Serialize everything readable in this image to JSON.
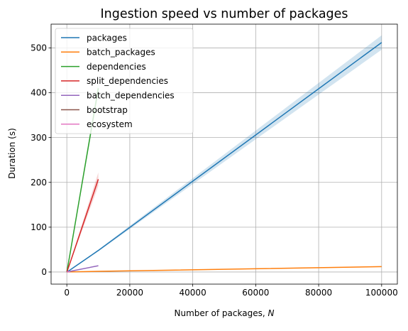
{
  "chart_data": {
    "type": "line",
    "title": "Ingestion speed vs number of packages",
    "xlabel": "Number of packages, ",
    "xlabel_italic": "N",
    "ylabel": "Duration (s)",
    "xlim": [
      -5000,
      105000
    ],
    "ylim": [
      -27,
      553
    ],
    "xticks": [
      0,
      20000,
      40000,
      60000,
      80000,
      100000
    ],
    "xtick_labels": [
      "0",
      "20000",
      "40000",
      "60000",
      "80000",
      "100000"
    ],
    "yticks": [
      0,
      100,
      200,
      300,
      400,
      500
    ],
    "ytick_labels": [
      "0",
      "100",
      "200",
      "300",
      "400",
      "500"
    ],
    "grid": true,
    "legend_position": "top-left",
    "series": [
      {
        "name": "packages",
        "color": "#1f77b4",
        "x": [
          10,
          100,
          1000,
          10000,
          100000
        ],
        "y": [
          0.1,
          0.5,
          4.5,
          48,
          512
        ],
        "band_low": [
          0.1,
          0.5,
          4.3,
          46,
          496
        ],
        "band_high": [
          0.1,
          0.5,
          4.7,
          50,
          528
        ]
      },
      {
        "name": "batch_packages",
        "color": "#ff7f0e",
        "x": [
          10,
          100,
          1000,
          10000,
          100000
        ],
        "y": [
          0.05,
          0.1,
          0.3,
          1.5,
          12
        ],
        "band_low": [
          0.05,
          0.1,
          0.3,
          1.3,
          11
        ],
        "band_high": [
          0.05,
          0.1,
          0.3,
          1.7,
          13
        ]
      },
      {
        "name": "dependencies",
        "color": "#2ca02c",
        "x": [
          10,
          100,
          1000,
          10000
        ],
        "y": [
          0.4,
          4,
          40,
          410
        ],
        "band_low": [
          0.4,
          3.8,
          38,
          398
        ],
        "band_high": [
          0.4,
          4.2,
          42,
          422
        ]
      },
      {
        "name": "split_dependencies",
        "color": "#d62728",
        "x": [
          10,
          100,
          1000,
          10000
        ],
        "y": [
          0.2,
          2,
          20,
          207
        ],
        "band_low": [
          0.2,
          1.9,
          18,
          192
        ],
        "band_high": [
          0.2,
          2.1,
          22,
          222
        ]
      },
      {
        "name": "batch_dependencies",
        "color": "#9467bd",
        "x": [
          10,
          100,
          1000,
          10000
        ],
        "y": [
          0.1,
          0.3,
          1.5,
          14
        ],
        "band_low": [
          0.1,
          0.3,
          1.4,
          13
        ],
        "band_high": [
          0.1,
          0.3,
          1.6,
          15
        ]
      },
      {
        "name": "bootstrap",
        "color": "#8c564b",
        "x": [
          10,
          100,
          1000
        ],
        "y": [
          0.05,
          0.1,
          0.5
        ],
        "band_low": [
          0.05,
          0.1,
          0.5
        ],
        "band_high": [
          0.05,
          0.1,
          0.5
        ]
      },
      {
        "name": "ecosystem",
        "color": "#e377c2",
        "x": [
          10,
          100,
          1000
        ],
        "y": [
          0.05,
          0.2,
          1.0
        ],
        "band_low": [
          0.05,
          0.2,
          1.0
        ],
        "band_high": [
          0.05,
          0.2,
          1.0
        ]
      }
    ]
  }
}
